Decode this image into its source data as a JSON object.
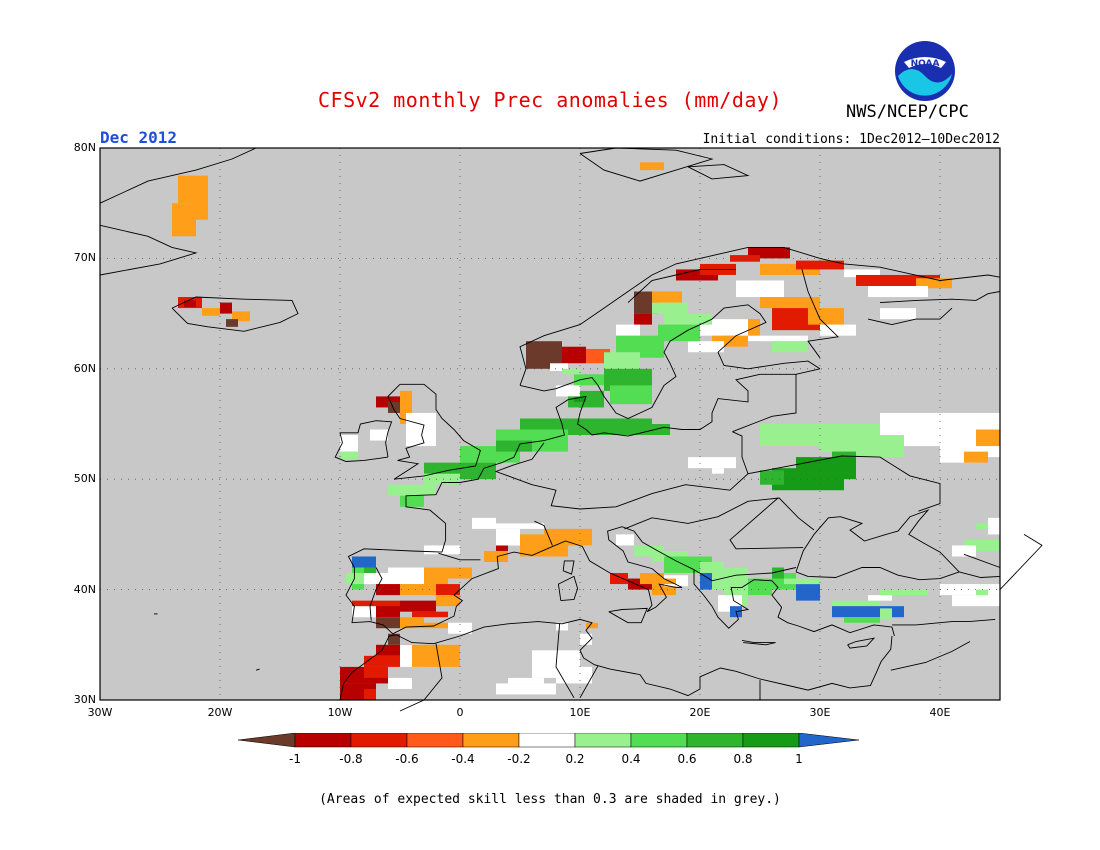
{
  "header": {
    "title": "CFSv2 monthly Prec anomalies (mm/day)",
    "month": "Dec 2012",
    "initial_conditions": "Initial conditions: 1Dec2012—10Dec2012",
    "agency": "NWS/NCEP/CPC",
    "logo_text": "NOAA"
  },
  "map": {
    "lat_range": [
      30,
      80
    ],
    "lon_range": [
      -30,
      45
    ],
    "grey_color": "#c8c8c8",
    "lat_labels": [
      "80N",
      "70N",
      "60N",
      "50N",
      "40N",
      "30N"
    ],
    "lon_labels": [
      "30W",
      "20W",
      "10W",
      "0",
      "10E",
      "20E",
      "30E",
      "40E"
    ]
  },
  "colorbar": {
    "labels": [
      "-1",
      "-0.8",
      "-0.6",
      "-0.4",
      "-0.2",
      "0.2",
      "0.4",
      "0.6",
      "0.8",
      "1"
    ],
    "colors": [
      "#6b3a2a",
      "#b80000",
      "#e21a00",
      "#ff5a1a",
      "#ff9e19",
      "#ffffff",
      "#99f08f",
      "#52dd52",
      "#2fb42f",
      "#169b16",
      "#2266cc"
    ]
  },
  "footnote": "(Areas of expected skill less than 0.3 are shaded in grey.)"
}
